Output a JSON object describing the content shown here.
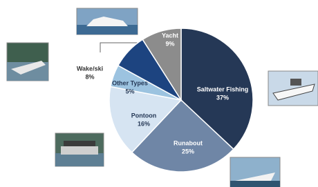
{
  "chart_data": {
    "type": "pie",
    "categories": [
      "Saltwater Fishing",
      "Runabout",
      "Pontoon",
      "Other Types",
      "Wake/ski",
      "Yacht"
    ],
    "values": [
      37,
      25,
      16,
      5,
      8,
      9
    ],
    "value_labels": [
      "37%",
      "25%",
      "16%",
      "5%",
      "8%",
      "9%"
    ],
    "colors": [
      "#253856",
      "#6f86a6",
      "#d6e4f2",
      "#9cc3e0",
      "#1d4480",
      "#8c8c8c"
    ],
    "label_colors": [
      "#ffffff",
      "#ffffff",
      "#253856",
      "#253856",
      "#333333",
      "#ffffff"
    ]
  }
}
